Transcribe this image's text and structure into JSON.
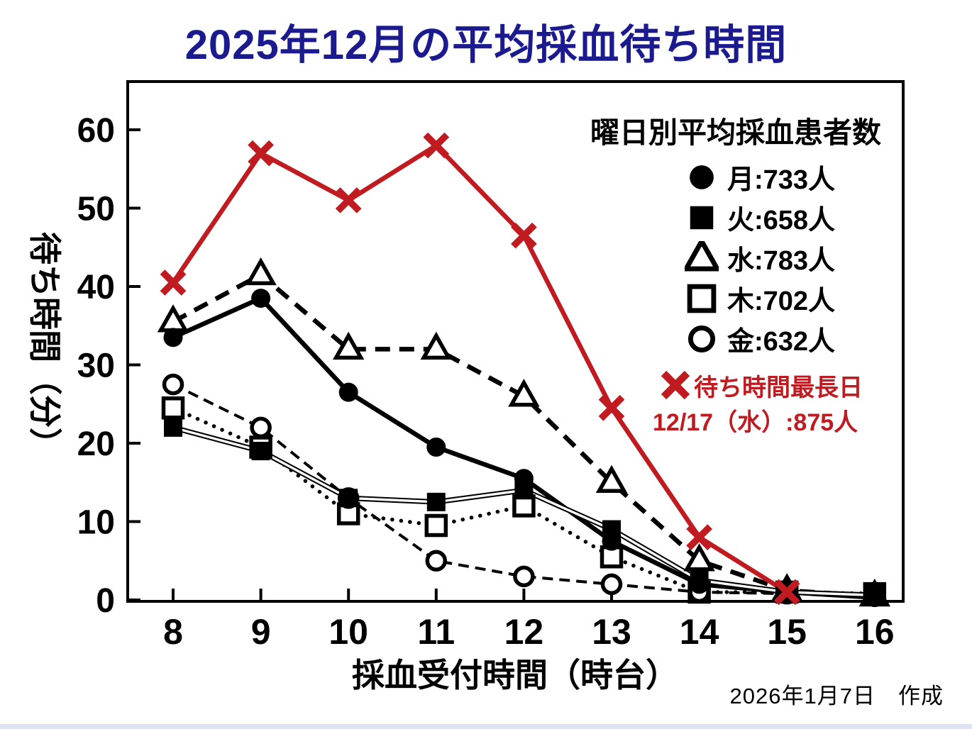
{
  "title": "2025年12月の平均採血待ち時間",
  "colors": {
    "title": "#1b1b8f",
    "red": "#c11b22",
    "black": "#000000",
    "bottom_strip": "#dce4f3"
  },
  "axes": {
    "x_label": "採血受付時間（時台）",
    "y_label": "待ち時間（分）",
    "x_ticks": [
      8,
      9,
      10,
      11,
      12,
      13,
      14,
      15,
      16
    ],
    "y_ticks": [
      0,
      10,
      20,
      30,
      40,
      50,
      60
    ]
  },
  "legend": {
    "title": "曜日別平均採血患者数",
    "items": [
      {
        "key": "mon",
        "marker": "filled-circle",
        "label": "月:733人"
      },
      {
        "key": "tue",
        "marker": "filled-square",
        "label": "火:658人"
      },
      {
        "key": "wed",
        "marker": "open-triangle",
        "label": "水:783人"
      },
      {
        "key": "thu",
        "marker": "open-square",
        "label": "木:702人"
      },
      {
        "key": "fri",
        "marker": "open-circle",
        "label": "金:632人"
      }
    ],
    "max_day": {
      "marker": "x-cross",
      "label": "待ち時間最長日",
      "sublabel": "12/17（水）:875人"
    }
  },
  "footer": {
    "date_note": "2026年1月7日　作成"
  },
  "chart_data": {
    "type": "line",
    "title": "2025年12月の平均採血待ち時間",
    "xlabel": "採血受付時間（時台）",
    "ylabel": "待ち時間（分）",
    "x": [
      8,
      9,
      10,
      11,
      12,
      13,
      14,
      15,
      16
    ],
    "ylim": [
      0,
      66
    ],
    "grid": false,
    "legend_position": "top-right-inside",
    "series": [
      {
        "key": "mon",
        "name": "月（平均733人）",
        "marker": "filled-circle",
        "line": "solid-thick",
        "color": "#000000",
        "values": [
          33.5,
          38.5,
          26.5,
          19.5,
          15.5,
          7.5,
          2,
          1,
          0.3
        ]
      },
      {
        "key": "tue",
        "name": "火（平均658人）",
        "marker": "filled-square",
        "line": "double",
        "color": "#000000",
        "values": [
          22,
          19,
          13,
          12.5,
          14,
          9,
          2.5,
          1,
          0.6
        ]
      },
      {
        "key": "wed",
        "name": "水（平均783人）",
        "marker": "open-triangle",
        "line": "dashed-thick",
        "color": "#000000",
        "values": [
          35.5,
          41.5,
          32,
          32,
          26,
          15,
          5,
          1.2,
          0.5
        ]
      },
      {
        "key": "thu",
        "name": "木（平均702人）",
        "marker": "open-square",
        "line": "dotted",
        "color": "#000000",
        "values": [
          24.5,
          19.5,
          11,
          9.5,
          12,
          5.5,
          1,
          1,
          0.8
        ]
      },
      {
        "key": "fri",
        "name": "金（平均632人）",
        "marker": "open-circle",
        "line": "dashed-thin",
        "color": "#000000",
        "values": [
          27.5,
          22,
          13,
          5,
          3,
          2,
          1,
          0.8,
          0.7
        ]
      },
      {
        "key": "max",
        "name": "待ち時間最長日 12/17（水）:875人",
        "marker": "x-cross",
        "line": "solid-thick",
        "color": "#c11b22",
        "values": [
          40.5,
          57,
          51,
          58,
          46.5,
          24.5,
          8,
          1,
          null
        ]
      }
    ]
  }
}
